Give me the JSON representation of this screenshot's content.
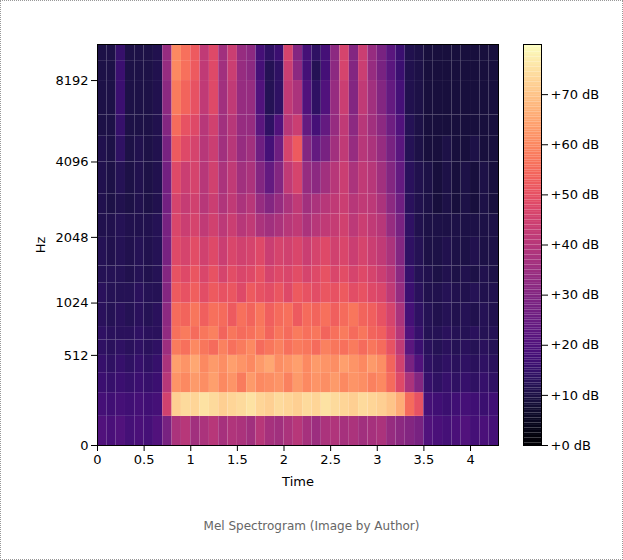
{
  "chart_data": {
    "type": "heatmap",
    "caption": "Mel Spectrogram (Image by Author)",
    "x_label": "Time",
    "y_label": "Hz",
    "xlim": [
      0,
      4.3
    ],
    "xticks": [
      0,
      0.5,
      1,
      1.5,
      2,
      2.5,
      3,
      3.5,
      4
    ],
    "ylim": [
      0,
      11025
    ],
    "yticks": [
      0,
      512,
      1024,
      2048,
      4096,
      8192
    ],
    "color": "magma",
    "time_bins": [
      0,
      0.1,
      0.2,
      0.3,
      0.4,
      0.5,
      0.6,
      0.7,
      0.8,
      0.9,
      1,
      1.1,
      1.2,
      1.3,
      1.4,
      1.5,
      1.6,
      1.7,
      1.8,
      1.9,
      2,
      2.1,
      2.2,
      2.3,
      2.4,
      2.5,
      2.6,
      2.7,
      2.8,
      2.9,
      3,
      3.1,
      3.2,
      3.3,
      3.4,
      3.5,
      3.6,
      3.7,
      3.8,
      3.9,
      4,
      4.1,
      4.2,
      4.3
    ],
    "freq_bins": [
      0,
      128,
      256,
      384,
      512,
      640,
      768,
      1024,
      1280,
      1536,
      2048,
      2560,
      3072,
      4096,
      5120,
      6144,
      8192,
      9600,
      11025
    ],
    "cells": [
      [
        20,
        19,
        20,
        18,
        19,
        18,
        20,
        28,
        38,
        40,
        36,
        38,
        40,
        37,
        39,
        38,
        36,
        40,
        37,
        36,
        38,
        40,
        37,
        35,
        38,
        39,
        37,
        38,
        36,
        37,
        38,
        34,
        32,
        30,
        28,
        20,
        19,
        18,
        19,
        20,
        18,
        19,
        18
      ],
      [
        18,
        17,
        18,
        17,
        18,
        17,
        18,
        45,
        72,
        74,
        73,
        75,
        74,
        72,
        73,
        74,
        75,
        73,
        72,
        74,
        73,
        72,
        74,
        73,
        75,
        74,
        73,
        72,
        74,
        73,
        72,
        70,
        66,
        55,
        50,
        18,
        17,
        16,
        17,
        18,
        17,
        16,
        17
      ],
      [
        16,
        15,
        16,
        15,
        16,
        15,
        16,
        40,
        62,
        60,
        63,
        61,
        64,
        60,
        62,
        58,
        63,
        60,
        61,
        62,
        59,
        63,
        60,
        62,
        61,
        63,
        60,
        62,
        61,
        59,
        60,
        55,
        48,
        38,
        30,
        15,
        14,
        15,
        14,
        15,
        14,
        15,
        14
      ],
      [
        15,
        14,
        15,
        14,
        15,
        14,
        15,
        38,
        64,
        62,
        65,
        60,
        63,
        61,
        64,
        62,
        60,
        63,
        65,
        61,
        62,
        64,
        60,
        63,
        62,
        61,
        64,
        62,
        60,
        63,
        61,
        54,
        45,
        28,
        20,
        14,
        13,
        14,
        13,
        14,
        13,
        14,
        13
      ],
      [
        14,
        13,
        14,
        13,
        14,
        13,
        14,
        35,
        58,
        56,
        60,
        57,
        55,
        59,
        56,
        58,
        60,
        55,
        57,
        59,
        56,
        58,
        57,
        55,
        59,
        57,
        56,
        58,
        55,
        57,
        55,
        50,
        42,
        22,
        16,
        13,
        12,
        13,
        12,
        13,
        12,
        13,
        12
      ],
      [
        14,
        13,
        13,
        13,
        14,
        13,
        13,
        33,
        56,
        58,
        55,
        57,
        59,
        54,
        57,
        55,
        56,
        58,
        54,
        57,
        55,
        58,
        56,
        57,
        54,
        56,
        58,
        55,
        57,
        54,
        53,
        48,
        40,
        20,
        15,
        12,
        12,
        13,
        12,
        12,
        13,
        12,
        12
      ],
      [
        13,
        12,
        13,
        12,
        13,
        12,
        13,
        32,
        55,
        54,
        57,
        53,
        56,
        55,
        52,
        56,
        54,
        57,
        53,
        55,
        56,
        52,
        55,
        54,
        56,
        53,
        55,
        57,
        54,
        53,
        50,
        46,
        38,
        18,
        14,
        12,
        11,
        12,
        11,
        12,
        11,
        12,
        11
      ],
      [
        13,
        12,
        12,
        12,
        13,
        12,
        12,
        30,
        52,
        50,
        53,
        49,
        52,
        50,
        51,
        48,
        52,
        50,
        49,
        51,
        48,
        52,
        50,
        49,
        51,
        50,
        52,
        49,
        50,
        48,
        47,
        42,
        34,
        16,
        13,
        11,
        11,
        12,
        11,
        11,
        12,
        11,
        11
      ],
      [
        12,
        12,
        12,
        11,
        12,
        11,
        12,
        30,
        50,
        48,
        51,
        47,
        50,
        46,
        49,
        47,
        48,
        50,
        46,
        48,
        47,
        49,
        46,
        48,
        50,
        47,
        49,
        46,
        48,
        46,
        44,
        40,
        32,
        15,
        12,
        11,
        10,
        11,
        10,
        11,
        10,
        11,
        10
      ],
      [
        12,
        11,
        12,
        11,
        12,
        11,
        12,
        28,
        48,
        46,
        49,
        45,
        48,
        44,
        47,
        45,
        46,
        48,
        44,
        46,
        45,
        47,
        44,
        46,
        48,
        45,
        47,
        44,
        46,
        44,
        42,
        38,
        30,
        14,
        12,
        10,
        10,
        11,
        10,
        10,
        11,
        10,
        10
      ],
      [
        11,
        11,
        12,
        11,
        11,
        11,
        12,
        28,
        47,
        44,
        46,
        42,
        45,
        41,
        44,
        40,
        42,
        38,
        36,
        38,
        40,
        42,
        38,
        40,
        42,
        43,
        45,
        41,
        44,
        42,
        40,
        34,
        28,
        14,
        11,
        10,
        10,
        10,
        10,
        10,
        10,
        10,
        10
      ],
      [
        11,
        10,
        11,
        10,
        11,
        10,
        11,
        27,
        46,
        43,
        45,
        40,
        44,
        39,
        42,
        38,
        40,
        34,
        30,
        34,
        38,
        42,
        36,
        38,
        40,
        42,
        44,
        40,
        42,
        41,
        38,
        32,
        26,
        13,
        11,
        10,
        9,
        10,
        9,
        10,
        9,
        10,
        9
      ],
      [
        11,
        10,
        12,
        10,
        11,
        10,
        11,
        27,
        48,
        44,
        46,
        40,
        45,
        38,
        42,
        36,
        38,
        30,
        24,
        30,
        42,
        46,
        34,
        32,
        36,
        40,
        44,
        38,
        42,
        40,
        36,
        30,
        24,
        13,
        11,
        10,
        9,
        10,
        9,
        10,
        9,
        10,
        9
      ],
      [
        11,
        10,
        14,
        10,
        11,
        10,
        11,
        28,
        52,
        48,
        46,
        40,
        44,
        36,
        40,
        34,
        36,
        26,
        18,
        26,
        46,
        52,
        30,
        24,
        28,
        36,
        42,
        34,
        40,
        38,
        34,
        28,
        22,
        12,
        10,
        9,
        9,
        10,
        9,
        9,
        10,
        9,
        9
      ],
      [
        10,
        10,
        15,
        10,
        10,
        10,
        11,
        30,
        55,
        50,
        48,
        40,
        45,
        36,
        40,
        34,
        34,
        22,
        14,
        20,
        40,
        44,
        24,
        18,
        24,
        34,
        42,
        32,
        40,
        36,
        32,
        26,
        20,
        12,
        10,
        9,
        9,
        9,
        9,
        9,
        9,
        9,
        9
      ],
      [
        10,
        10,
        16,
        10,
        10,
        10,
        11,
        32,
        58,
        54,
        50,
        42,
        48,
        36,
        42,
        34,
        34,
        20,
        12,
        14,
        42,
        38,
        20,
        14,
        20,
        34,
        44,
        30,
        42,
        36,
        30,
        24,
        18,
        11,
        10,
        9,
        9,
        9,
        9,
        9,
        9,
        9,
        9
      ],
      [
        10,
        10,
        16,
        10,
        10,
        10,
        11,
        34,
        60,
        56,
        52,
        42,
        48,
        36,
        44,
        34,
        32,
        18,
        12,
        14,
        44,
        32,
        18,
        12,
        18,
        32,
        46,
        30,
        44,
        34,
        28,
        22,
        16,
        11,
        10,
        9,
        9,
        9,
        9,
        9,
        9,
        9,
        9
      ],
      [
        10,
        10,
        15,
        10,
        10,
        10,
        11,
        34,
        60,
        56,
        52,
        42,
        48,
        36,
        44,
        34,
        32,
        18,
        14,
        16,
        46,
        30,
        18,
        14,
        18,
        32,
        46,
        30,
        44,
        34,
        28,
        22,
        16,
        11,
        10,
        9,
        9,
        9,
        9,
        9,
        9,
        9,
        9
      ]
    ],
    "colorbar": {
      "range": [
        0,
        80
      ],
      "ticks": [
        {
          "value": 0,
          "label": "+0 dB"
        },
        {
          "value": 10,
          "label": "+10 dB"
        },
        {
          "value": 20,
          "label": "+20 dB"
        },
        {
          "value": 30,
          "label": "+30 dB"
        },
        {
          "value": 40,
          "label": "+40 dB"
        },
        {
          "value": 50,
          "label": "+50 dB"
        },
        {
          "value": 60,
          "label": "+60 dB"
        },
        {
          "value": 70,
          "label": "+70 dB"
        }
      ]
    }
  }
}
